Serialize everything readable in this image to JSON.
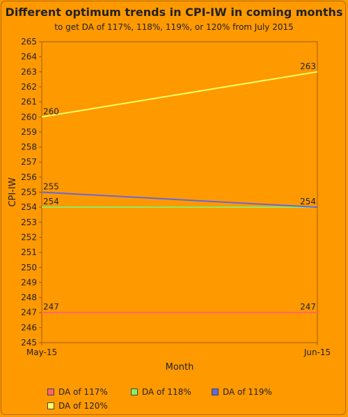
{
  "chart_data": {
    "type": "line",
    "title": "Different optimum trends in CPI-IW in coming months",
    "subtitle": "to get DA of 117%, 118%, 119%, or 120% from July 2015",
    "xlabel": "Month",
    "ylabel": "CPI-IW",
    "categories": [
      "May-15",
      "Jun-15"
    ],
    "ylim": [
      245,
      265
    ],
    "yticks": [
      245,
      246,
      247,
      248,
      249,
      250,
      251,
      252,
      253,
      254,
      255,
      256,
      257,
      258,
      259,
      260,
      261,
      262,
      263,
      264,
      265
    ],
    "grid": false,
    "legend_position": "bottom",
    "series": [
      {
        "name": "DA of 117%",
        "values": [
          247,
          247
        ],
        "color": "#ff6666",
        "labels": [
          "247",
          "247"
        ]
      },
      {
        "name": "DA of 118%",
        "values": [
          254,
          254
        ],
        "color": "#88ee66",
        "labels": [
          "254",
          ""
        ]
      },
      {
        "name": "DA of 119%",
        "values": [
          255,
          254
        ],
        "color": "#6666dd",
        "labels": [
          "255",
          "254"
        ]
      },
      {
        "name": "DA of 120%",
        "values": [
          260,
          263
        ],
        "color": "#ffff66",
        "labels": [
          "260",
          "263"
        ]
      }
    ]
  }
}
